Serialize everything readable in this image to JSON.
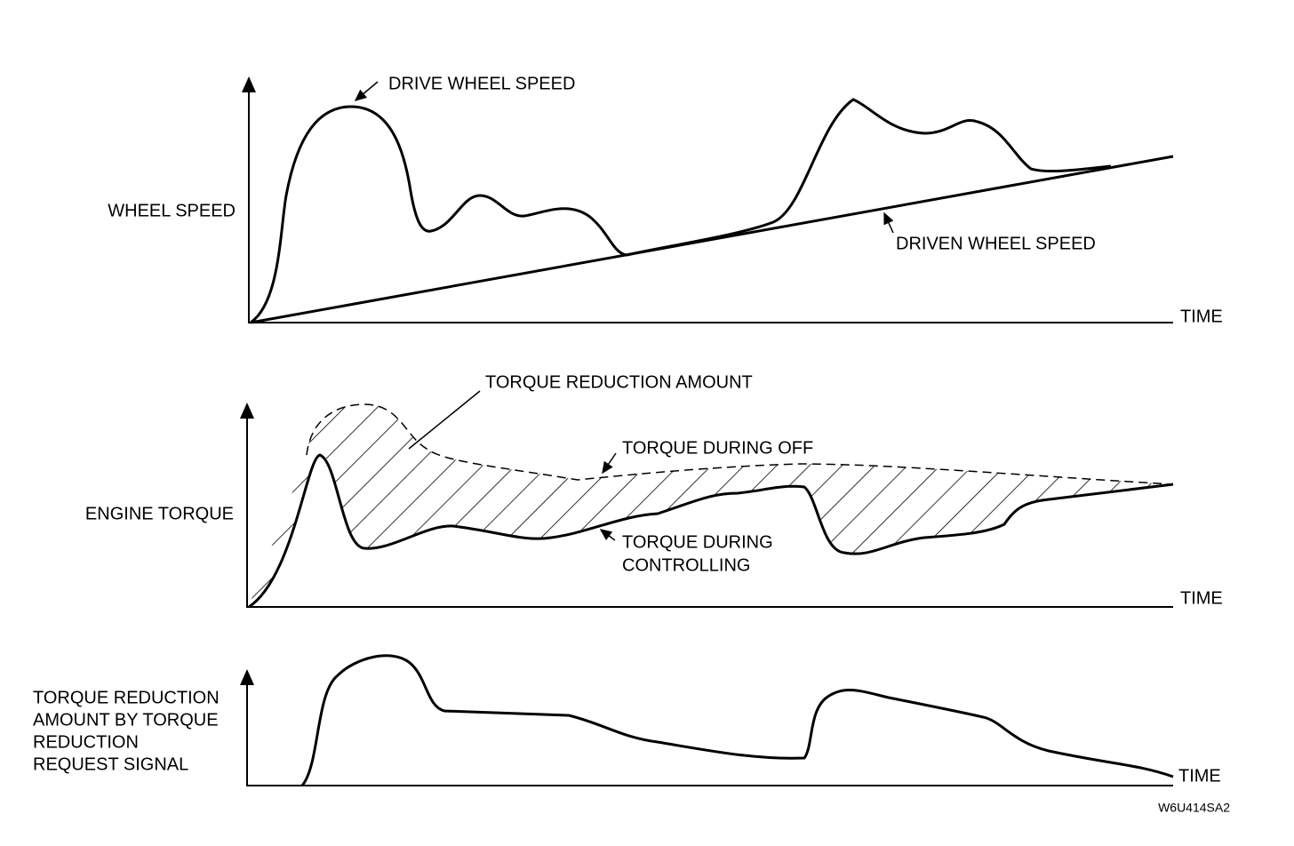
{
  "panels": [
    {
      "y_label": [
        "WHEEL SPEED"
      ],
      "x_label": "TIME",
      "annotations": [
        "DRIVE WHEEL SPEED",
        "DRIVEN WHEEL SPEED"
      ]
    },
    {
      "y_label": [
        "ENGINE TORQUE"
      ],
      "x_label": "TIME",
      "annotations": [
        "TORQUE REDUCTION AMOUNT",
        "TORQUE DURING OFF",
        "TORQUE DURING",
        "CONTROLLING"
      ]
    },
    {
      "y_label": [
        "TORQUE REDUCTION",
        "AMOUNT BY TORQUE",
        "REDUCTION",
        "REQUEST SIGNAL"
      ],
      "x_label": "TIME",
      "annotations": []
    }
  ],
  "figure_code": "W6U414SA2"
}
